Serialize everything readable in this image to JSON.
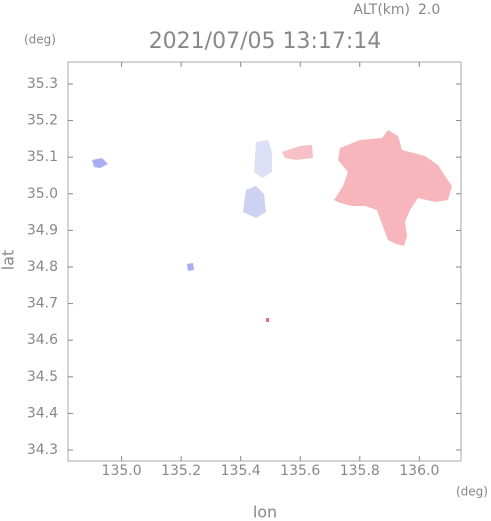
{
  "chart_data": {
    "type": "map",
    "title": "2021/07/05 13:17:14",
    "altitude_label": "ALT(km)",
    "altitude_value": "2.0",
    "x_label": "lon",
    "y_label": "lat",
    "x_unit": "(deg)",
    "y_unit": "(deg)",
    "xlim": [
      134.82,
      136.14
    ],
    "ylim": [
      34.27,
      35.36
    ],
    "xticks": [
      {
        "value": 135.0,
        "label": "135.0"
      },
      135.2,
      135.4,
      135.6,
      135.8,
      {
        "value": 136.0,
        "label": "136.0"
      }
    ],
    "yticks": [
      34.3,
      34.4,
      34.5,
      34.6,
      34.7,
      34.8,
      34.9,
      {
        "value": 35.0,
        "label": "35.0"
      },
      35.1,
      35.2,
      35.3
    ]
  }
}
